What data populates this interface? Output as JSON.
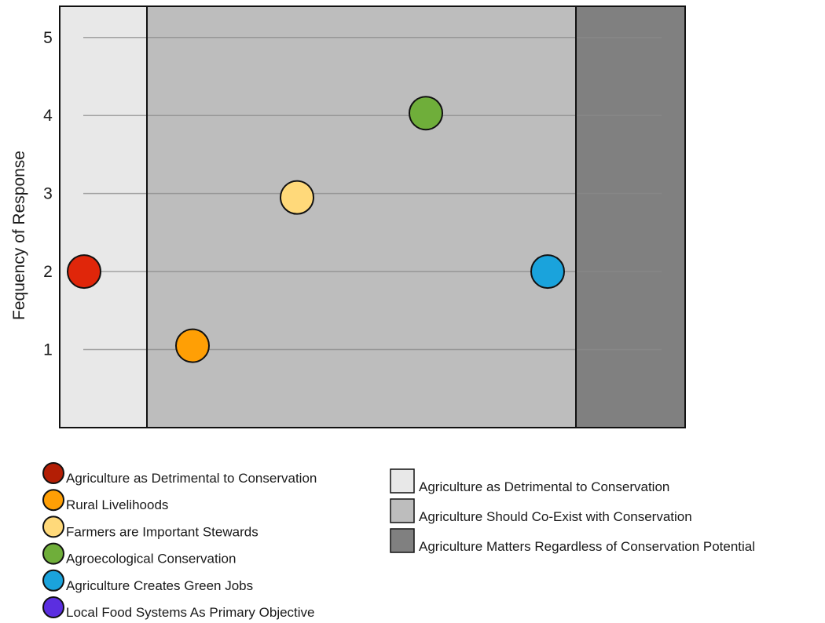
{
  "chart_data": {
    "type": "scatter",
    "title": "",
    "xlabel": "",
    "ylabel": "Fequency of Response",
    "ylim": [
      0,
      5.4
    ],
    "y_ticks": [
      1,
      2,
      3,
      4,
      5
    ],
    "grid": true,
    "bands": [
      {
        "name": "Agriculture as Detrimental to Conservation",
        "color": "#e8e8e8"
      },
      {
        "name": "Agriculture Should Co-Exist with Conservation",
        "color": "#bdbdbd"
      },
      {
        "name": "Agriculture Matters Regardless of Conservation Potential",
        "color": "#808080"
      }
    ],
    "series": [
      {
        "name": "Agriculture as Detrimental to Conservation",
        "color": "#e0260a",
        "legend_color": "#b31e05",
        "y": 2.0
      },
      {
        "name": "Rural Livelihoods",
        "color": "#ff9f05",
        "legend_color": "#ff9f05",
        "y": 1.05
      },
      {
        "name": "Farmers are Important Stewards",
        "color": "#ffd97a",
        "legend_color": "#ffd97a",
        "y": 2.95
      },
      {
        "name": "Agroecological Conservation",
        "color": "#6fae3a",
        "legend_color": "#6fae3a",
        "y": 4.03
      },
      {
        "name": "Agriculture Creates Green Jobs",
        "color": "#1aa3dc",
        "legend_color": "#1aa3dc",
        "y": 2.0
      },
      {
        "name": "Local Food Systems As Primary Objective",
        "color": "#5b2ee0",
        "legend_color": "#5b2ee0",
        "y": null
      }
    ],
    "legend_position": "bottom"
  }
}
